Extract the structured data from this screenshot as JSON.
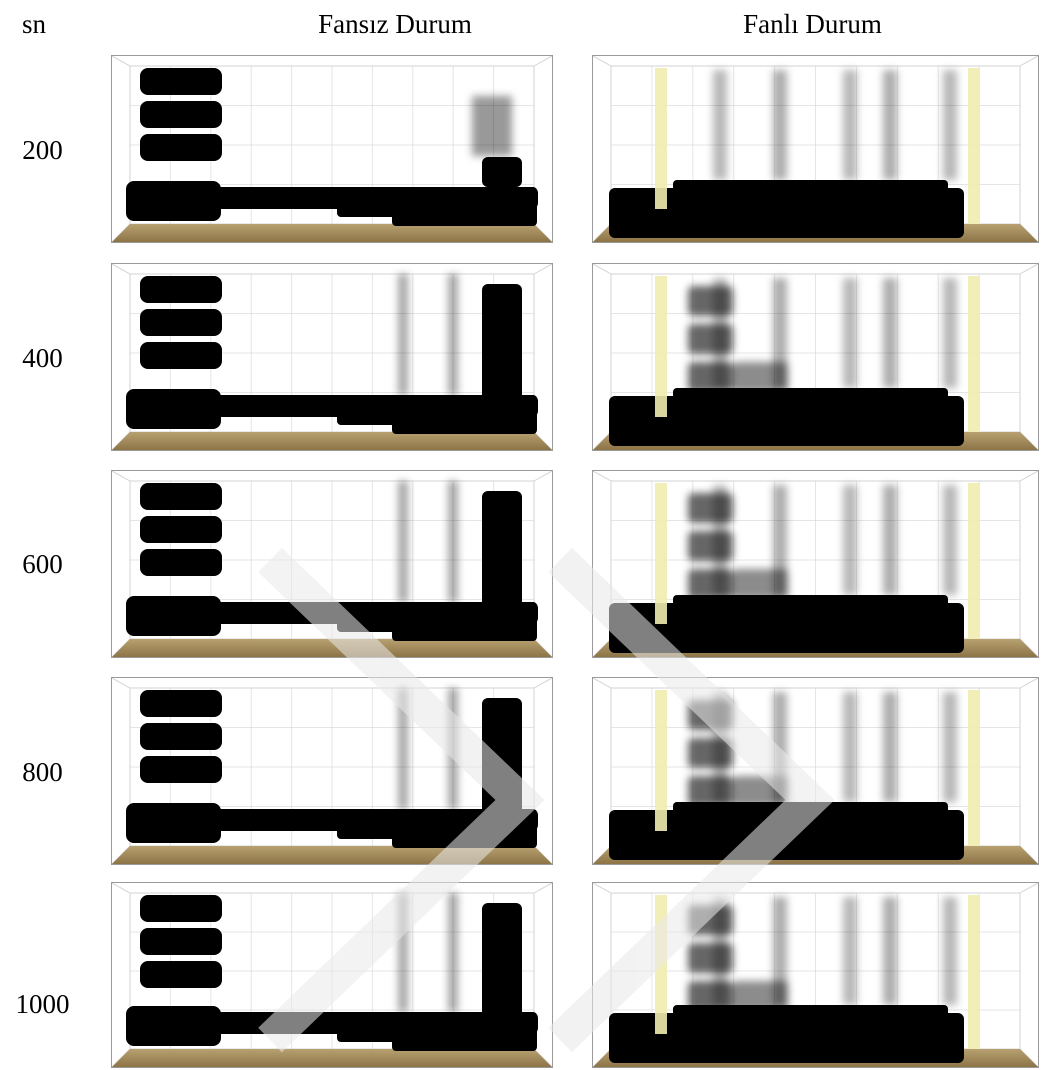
{
  "header": {
    "time_label": "sn",
    "left_title": "Fansız Durum",
    "right_title": "Fanlı Durum"
  },
  "rows": [
    {
      "label": "200"
    },
    {
      "label": "400"
    },
    {
      "label": "600"
    },
    {
      "label": "800"
    },
    {
      "label": "1000"
    }
  ]
}
